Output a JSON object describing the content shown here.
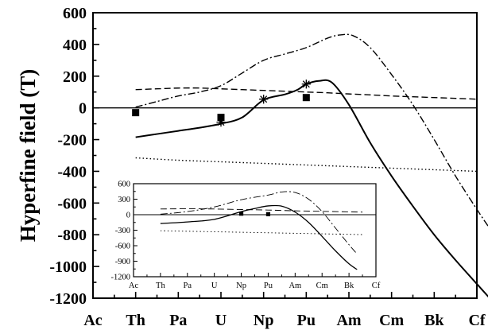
{
  "chart_data": [
    {
      "type": "line",
      "title": "",
      "xlabel": "",
      "ylabel": "Hyperfine field (T)",
      "categories": [
        "Ac",
        "Th",
        "Pa",
        "U",
        "Np",
        "Pu",
        "Am",
        "Cm",
        "Bk",
        "Cf"
      ],
      "ylim": [
        -1200,
        600
      ],
      "yticks": [
        "600",
        "400",
        "200",
        "0",
        "-200",
        "-400",
        "-600",
        "-800",
        "-1000",
        "-1200"
      ],
      "zero_line": true,
      "grid": false,
      "series": [
        {
          "style": "solid",
          "x": [
            1,
            1.5,
            2,
            2.5,
            3,
            3.5,
            4,
            4.5,
            4.8,
            5,
            5.3,
            5.6,
            6,
            6.5,
            7,
            7.5,
            8,
            8.5,
            9,
            9.3
          ],
          "y": [
            -185,
            -165,
            -145,
            -125,
            -100,
            -60,
            50,
            85,
            115,
            150,
            170,
            160,
            20,
            -220,
            -430,
            -620,
            -800,
            -960,
            -1110,
            -1200
          ]
        },
        {
          "style": "dashdot",
          "x": [
            1,
            1.5,
            2,
            2.5,
            3,
            3.5,
            4,
            4.5,
            5,
            5.5,
            5.8,
            6.1,
            6.5,
            7,
            7.5,
            8,
            8.5,
            9,
            9.3
          ],
          "y": [
            5,
            40,
            75,
            100,
            140,
            220,
            300,
            340,
            380,
            440,
            460,
            455,
            380,
            210,
            20,
            -200,
            -430,
            -640,
            -760
          ]
        },
        {
          "style": "dashed",
          "x": [
            1,
            1.5,
            2,
            2.5,
            3,
            3.5,
            4,
            4.5,
            5,
            5.5,
            6,
            6.5,
            7,
            7.5,
            8,
            8.5,
            9
          ],
          "y": [
            115,
            120,
            125,
            125,
            120,
            115,
            110,
            105,
            100,
            95,
            88,
            82,
            75,
            70,
            65,
            60,
            55
          ]
        },
        {
          "style": "dotted",
          "x": [
            1,
            2,
            3,
            4,
            5,
            6,
            7,
            8,
            9
          ],
          "y": [
            -315,
            -330,
            -340,
            -350,
            -360,
            -370,
            -380,
            -390,
            -400
          ]
        }
      ],
      "markers": [
        {
          "shape": "square",
          "points": [
            [
              1,
              -30
            ],
            [
              3,
              -60
            ],
            [
              5,
              65
            ]
          ]
        },
        {
          "shape": "asterisk",
          "points": [
            [
              3,
              -90
            ],
            [
              4,
              55
            ],
            [
              5,
              150
            ]
          ]
        }
      ]
    },
    {
      "type": "line",
      "title": "",
      "xlabel": "",
      "ylabel": "",
      "categories": [
        "Ac",
        "Th",
        "Pa",
        "U",
        "Np",
        "Pu",
        "Am",
        "Cm",
        "Bk",
        "Cf"
      ],
      "ylim": [
        -1200,
        600
      ],
      "yticks": [
        "600",
        "300",
        "0",
        "-300",
        "-600",
        "-900",
        "-1200"
      ],
      "zero_line": true,
      "grid": false,
      "series": [
        {
          "style": "solid",
          "x": [
            1,
            2,
            3,
            4,
            4.5,
            5,
            5.5,
            6,
            6.5,
            7,
            7.5,
            8,
            8.3
          ],
          "y": [
            -170,
            -140,
            -90,
            60,
            120,
            170,
            165,
            50,
            -150,
            -420,
            -700,
            -950,
            -1060
          ]
        },
        {
          "style": "dashdot",
          "x": [
            1,
            2,
            3,
            4,
            5,
            5.5,
            6,
            6.5,
            7,
            7.5,
            8,
            8.3
          ],
          "y": [
            10,
            60,
            150,
            290,
            380,
            440,
            430,
            300,
            60,
            -260,
            -580,
            -760
          ]
        },
        {
          "style": "dashed",
          "x": [
            1,
            2,
            3,
            4,
            5,
            6,
            7,
            8,
            8.5
          ],
          "y": [
            110,
            115,
            110,
            100,
            90,
            75,
            65,
            55,
            50
          ]
        },
        {
          "style": "dotted",
          "x": [
            1,
            2,
            3,
            4,
            5,
            6,
            7,
            8,
            8.5
          ],
          "y": [
            -310,
            -320,
            -330,
            -340,
            -350,
            -360,
            -370,
            -380,
            -385
          ]
        }
      ],
      "markers": [
        {
          "shape": "square",
          "points": [
            [
              4,
              20
            ],
            [
              5,
              10
            ]
          ]
        }
      ]
    }
  ]
}
